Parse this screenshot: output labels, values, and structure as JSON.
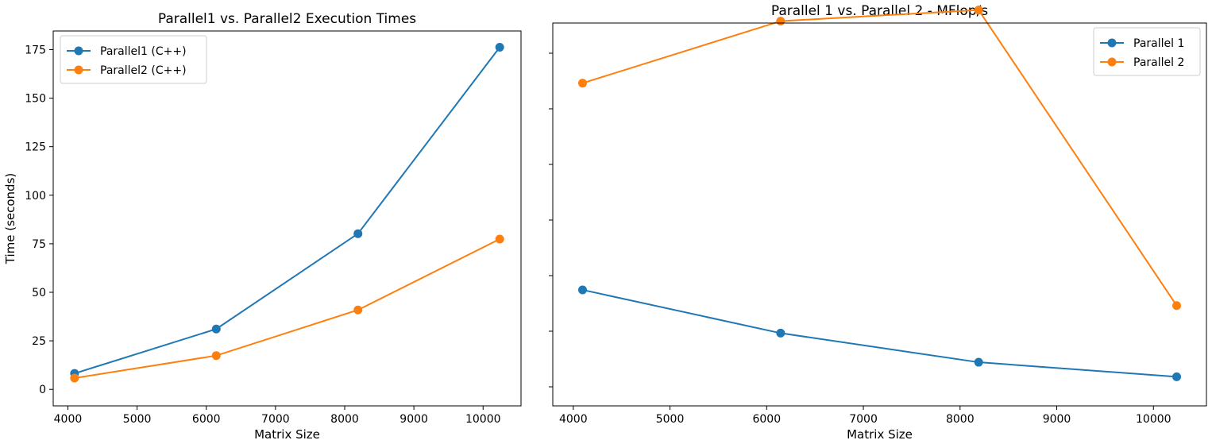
{
  "chart_data": [
    {
      "type": "line",
      "title": "Parallel1 vs. Parallel2 Execution Times",
      "xlabel": "Matrix Size",
      "ylabel": "Time (seconds)",
      "x": [
        4096,
        6144,
        8192,
        10240
      ],
      "xlim": [
        3788,
        10548
      ],
      "ylim": [
        -8.5,
        184.6
      ],
      "xticks": [
        4000,
        5000,
        6000,
        7000,
        8000,
        9000,
        10000
      ],
      "yticks": [
        0,
        25,
        50,
        75,
        100,
        125,
        150,
        175
      ],
      "grid": false,
      "legend_position": "top-left",
      "series": [
        {
          "name": "Parallel1 (C++)",
          "color": "#1f77b4",
          "values": [
            8.2,
            31.1,
            80.2,
            176.2
          ]
        },
        {
          "name": "Parallel2 (C++)",
          "color": "#ff7f0e",
          "values": [
            5.8,
            17.4,
            40.9,
            77.4
          ]
        }
      ]
    },
    {
      "type": "line",
      "title": "Parallel 1 vs. Parallel 2 - MFlop/s",
      "xlabel": "Matrix Size",
      "ylabel": "",
      "x": [
        4096,
        6144,
        8192,
        10240
      ],
      "xlim": [
        3788,
        10548
      ],
      "ylim": [
        0,
        100
      ],
      "yticks_hidden_labels": true,
      "grid": false,
      "legend_position": "top-right",
      "series": [
        {
          "name": "Parallel 1",
          "color": "#1f77b4",
          "values": [
            30.3,
            19.0,
            11.4,
            7.6
          ]
        },
        {
          "name": "Parallel 2",
          "color": "#ff7f0e",
          "values": [
            84.3,
            100.5,
            103.4,
            26.2
          ]
        }
      ]
    }
  ]
}
